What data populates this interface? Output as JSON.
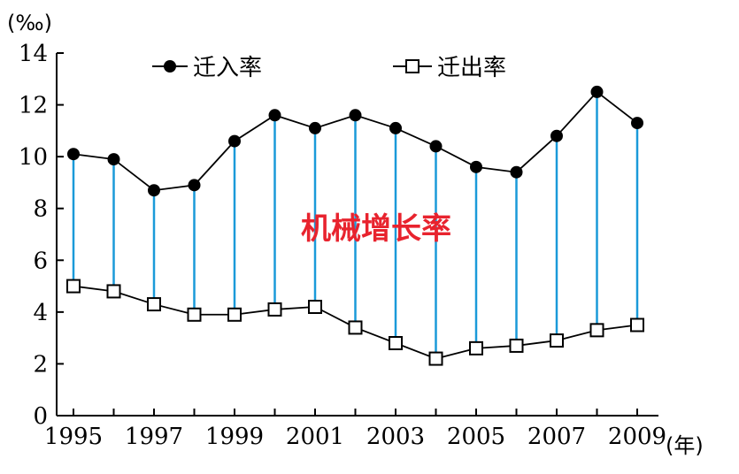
{
  "chart_data": {
    "type": "line",
    "y_unit_label": "(‰)",
    "x_unit_label": "(年)",
    "ylim": [
      0,
      14
    ],
    "y_ticks": [
      0,
      2,
      4,
      6,
      8,
      10,
      12,
      14
    ],
    "x_tick_labels": [
      "1995",
      "1997",
      "1999",
      "2001",
      "2003",
      "2005",
      "2007",
      "2009"
    ],
    "x": [
      1995,
      1996,
      1997,
      1998,
      1999,
      2000,
      2001,
      2002,
      2003,
      2004,
      2005,
      2006,
      2007,
      2008,
      2009
    ],
    "series": [
      {
        "name": "迁入率",
        "marker": "filled-circle",
        "values": [
          10.1,
          9.9,
          8.7,
          8.9,
          10.6,
          11.6,
          11.1,
          11.6,
          11.1,
          10.4,
          9.6,
          9.4,
          10.8,
          12.5,
          11.3
        ]
      },
      {
        "name": "迁出率",
        "marker": "open-square",
        "values": [
          5.0,
          4.8,
          4.3,
          3.9,
          3.9,
          4.1,
          4.2,
          3.4,
          2.8,
          2.2,
          2.6,
          2.7,
          2.9,
          3.3,
          3.5
        ]
      }
    ],
    "annotation": "机械增长率",
    "colors": {
      "line": "#000000",
      "connector": "#1a9ad9",
      "annotation": "#e8232e"
    },
    "legend_position": "top"
  }
}
